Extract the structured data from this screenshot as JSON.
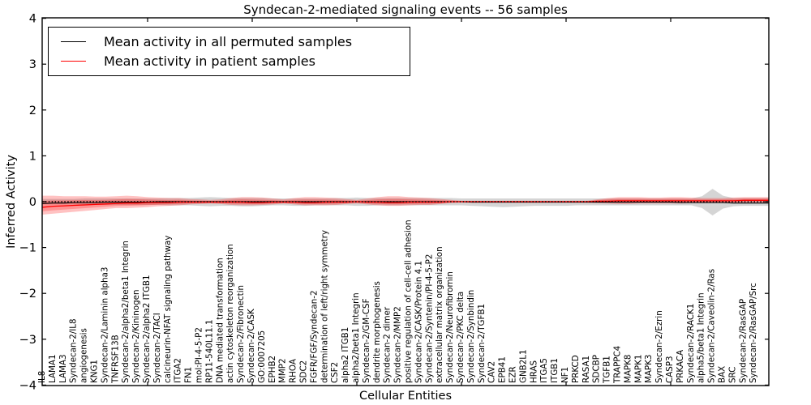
{
  "title": "Syndecan-2-mediated signaling events -- 56 samples",
  "axes": {
    "ylabel": "Inferred Activity",
    "xlabel": "Cellular Entities",
    "ylim": [
      -4,
      4
    ],
    "yticks": [
      4,
      3,
      2,
      1,
      0,
      -1,
      -2,
      -3,
      -4
    ],
    "grid": false
  },
  "legend": {
    "position": "upper left",
    "items": [
      {
        "label": "Mean activity in all permuted samples",
        "color": "#000000"
      },
      {
        "label": "Mean activity in patient samples",
        "color": "#ff0000"
      }
    ]
  },
  "colors": {
    "frame": "#000000",
    "background": "#ffffff",
    "permuted_line": "#000000",
    "patient_line": "#ff0000",
    "permuted_band": "rgba(125,125,125,0.32)",
    "patient_band": "rgba(255,0,0,0.24)",
    "zero_line": "#000000"
  },
  "chart_data": {
    "type": "line",
    "title": "Syndecan-2-mediated signaling events -- 56 samples",
    "xlabel": "Cellular Entities",
    "ylabel": "Inferred Activity",
    "ylim": [
      -4,
      4
    ],
    "legend_position": "upper left",
    "grid": false,
    "zero_reference_line": true,
    "categories": [
      "IL8",
      "LAMA1",
      "LAMA3",
      "Syndecan-2/IL8",
      "angiogenesis",
      "KNG1",
      "Syndecan-2/Laminin alpha3",
      "TNFRSF13B",
      "Syndecan-2/alpha2/beta1 Integrin",
      "Syndecan-2/Kininogen",
      "Syndecan-2/alpha2 ITGB1",
      "Syndecan-2/TACI",
      "calcineurin-NFAT signaling pathway",
      "ITGA2",
      "FN1",
      "mol:PI-4-5-P2",
      "RP11-540L11.1",
      "DNA mediated transformation",
      "actin cytoskeleton reorganization",
      "Syndecan-2/Fibronectin",
      "Syndecan-2/CASK",
      "GO:0007205",
      "EPHB2",
      "MMP2",
      "RHOA",
      "SDC2",
      "FGFR/FGF/Syndecan-2",
      "determination of left/right symmetry",
      "CSF2",
      "alpha2 ITGB1",
      "alpha2/beta1 Integrin",
      "Syndecan-2/GM-CSF",
      "dendrite morphogenesis",
      "Syndecan-2 dimer",
      "Syndecan-2/MMP2",
      "positive regulation of cell-cell adhesion",
      "Syndecan-2/CASK/Protein 4.1",
      "Syndecan-2/Syntenin/PI-4-5-P2",
      "extracellular matrix organization",
      "Syndecan-2/Neurofibromin",
      "Syndecan-2/PKC delta",
      "Syndecan-2/Synbindin",
      "Syndecan-2/TGFB1",
      "CAV2",
      "EPB41",
      "EZR",
      "GNB2L1",
      "HRAS",
      "ITGA5",
      "ITGB1",
      "NF1",
      "PRKCD",
      "RASA1",
      "SDCBP",
      "TGFB1",
      "TRAPPC4",
      "MAPK8",
      "MAPK1",
      "MAPK3",
      "Syndecan-2/Ezrin",
      "CASP3",
      "PRKACA",
      "Syndecan-2/RACK1",
      "alpha5/beta1 Integrin",
      "Syndecan-2/Caveolin-2/Ras",
      "BAX",
      "SRC",
      "Syndecan-2/RasGAP",
      "Syndecan-2/RasGAP/Src"
    ],
    "series": [
      {
        "name": "Mean activity in all permuted samples",
        "color": "#000000",
        "values": [
          -0.04,
          -0.03,
          -0.03,
          -0.02,
          -0.02,
          -0.02,
          -0.01,
          -0.01,
          -0.01,
          -0.01,
          -0.01,
          0,
          0,
          0,
          0,
          0,
          0,
          0,
          0,
          0,
          0,
          0,
          0,
          0,
          0,
          0,
          0,
          0,
          0,
          0,
          0,
          0,
          0,
          0,
          0,
          0,
          0,
          0,
          0,
          0,
          0,
          -0.01,
          -0.01,
          -0.01,
          -0.01,
          -0.01,
          -0.01,
          -0.01,
          -0.01,
          -0.01,
          -0.01,
          -0.01,
          -0.01,
          -0.01,
          -0.01,
          -0.01,
          -0.01,
          -0.01,
          -0.01,
          -0.01,
          -0.01,
          -0.02,
          -0.02,
          -0.02,
          -0.02,
          -0.02,
          -0.03,
          -0.03,
          -0.03
        ]
      },
      {
        "name": "Mean activity in patient samples",
        "color": "#ff0000",
        "values": [
          -0.12,
          -0.1,
          -0.09,
          -0.08,
          -0.07,
          -0.06,
          -0.05,
          -0.04,
          -0.03,
          -0.03,
          -0.02,
          -0.02,
          -0.02,
          -0.01,
          -0.01,
          -0.01,
          -0.01,
          -0.01,
          -0.01,
          -0.01,
          -0.02,
          -0.02,
          -0.01,
          -0.01,
          -0.01,
          -0.02,
          -0.02,
          -0.01,
          -0.01,
          -0.01,
          0,
          -0.01,
          -0.01,
          -0.02,
          -0.02,
          -0.01,
          -0.01,
          -0.01,
          -0.01,
          0,
          0,
          0,
          0,
          0,
          0,
          0,
          0,
          0,
          0,
          0,
          0,
          0,
          0,
          0.01,
          0.01,
          0.02,
          0.02,
          0.02,
          0.02,
          0.02,
          0.02,
          0.02,
          0.02,
          0.02,
          0.02,
          0.02,
          0.02,
          0.03,
          0.03
        ]
      }
    ],
    "bands": [
      {
        "name": "permuted-samples-std-band",
        "color": "rgba(125,125,125,0.32)",
        "upper": [
          0.06,
          0.06,
          0.06,
          0.06,
          0.07,
          0.07,
          0.07,
          0.07,
          0.07,
          0.07,
          0.07,
          0.07,
          0.08,
          0.08,
          0.08,
          0.09,
          0.1,
          0.09,
          0.08,
          0.08,
          0.08,
          0.08,
          0.07,
          0.07,
          0.07,
          0.07,
          0.07,
          0.07,
          0.08,
          0.08,
          0.09,
          0.08,
          0.08,
          0.08,
          0.08,
          0.08,
          0.08,
          0.08,
          0.08,
          0.08,
          0.07,
          0.07,
          0.07,
          0.07,
          0.07,
          0.07,
          0.07,
          0.07,
          0.07,
          0.07,
          0.07,
          0.07,
          0.07,
          0.07,
          0.07,
          0.07,
          0.07,
          0.07,
          0.07,
          0.07,
          0.07,
          0.07,
          0.07,
          0.12,
          0.28,
          0.13,
          0.08,
          0.08,
          0.08
        ],
        "lower": [
          -0.06,
          -0.06,
          -0.06,
          -0.06,
          -0.07,
          -0.07,
          -0.07,
          -0.07,
          -0.07,
          -0.07,
          -0.07,
          -0.07,
          -0.08,
          -0.08,
          -0.08,
          -0.09,
          -0.1,
          -0.09,
          -0.09,
          -0.1,
          -0.1,
          -0.09,
          -0.08,
          -0.08,
          -0.09,
          -0.09,
          -0.08,
          -0.08,
          -0.08,
          -0.08,
          -0.09,
          -0.09,
          -0.08,
          -0.08,
          -0.08,
          -0.08,
          -0.08,
          -0.08,
          -0.08,
          -0.08,
          -0.08,
          -0.09,
          -0.1,
          -0.11,
          -0.12,
          -0.11,
          -0.1,
          -0.09,
          -0.09,
          -0.09,
          -0.09,
          -0.08,
          -0.08,
          -0.08,
          -0.08,
          -0.08,
          -0.08,
          -0.08,
          -0.08,
          -0.08,
          -0.08,
          -0.08,
          -0.08,
          -0.14,
          -0.3,
          -0.15,
          -0.1,
          -0.09,
          -0.09
        ]
      },
      {
        "name": "patient-samples-std-band",
        "color": "rgba(255,0,0,0.24)",
        "upper": [
          0.13,
          0.13,
          0.12,
          0.12,
          0.12,
          0.11,
          0.11,
          0.12,
          0.13,
          0.12,
          0.1,
          0.09,
          0.08,
          0.08,
          0.06,
          0.05,
          0.04,
          0.05,
          0.08,
          0.1,
          0.1,
          0.09,
          0.07,
          0.05,
          0.08,
          0.1,
          0.1,
          0.09,
          0.08,
          0.06,
          0.04,
          0.07,
          0.1,
          0.12,
          0.12,
          0.1,
          0.09,
          0.08,
          0.06,
          0.04,
          0.02,
          0.02,
          0.02,
          0.02,
          0.02,
          0.02,
          0.02,
          0.02,
          0.02,
          0.02,
          0.02,
          0.02,
          0.02,
          0.05,
          0.08,
          0.1,
          0.1,
          0.1,
          0.09,
          0.09,
          0.1,
          0.1,
          0.09,
          0.08,
          0.08,
          0.08,
          0.09,
          0.1,
          0.1
        ],
        "lower": [
          -0.28,
          -0.26,
          -0.24,
          -0.22,
          -0.2,
          -0.18,
          -0.16,
          -0.14,
          -0.14,
          -0.13,
          -0.12,
          -0.1,
          -0.09,
          -0.08,
          -0.06,
          -0.05,
          -0.04,
          -0.05,
          -0.07,
          -0.08,
          -0.08,
          -0.07,
          -0.06,
          -0.04,
          -0.06,
          -0.08,
          -0.08,
          -0.08,
          -0.07,
          -0.05,
          -0.04,
          -0.06,
          -0.08,
          -0.09,
          -0.09,
          -0.08,
          -0.07,
          -0.07,
          -0.05,
          -0.03,
          -0.02,
          -0.02,
          -0.02,
          -0.02,
          -0.02,
          -0.02,
          -0.02,
          -0.02,
          -0.02,
          -0.02,
          -0.02,
          -0.02,
          -0.02,
          -0.03,
          -0.04,
          -0.05,
          -0.05,
          -0.04,
          -0.04,
          -0.04,
          -0.04,
          -0.04,
          -0.03,
          -0.03,
          -0.03,
          -0.03,
          -0.03,
          -0.02,
          -0.02
        ]
      }
    ]
  }
}
